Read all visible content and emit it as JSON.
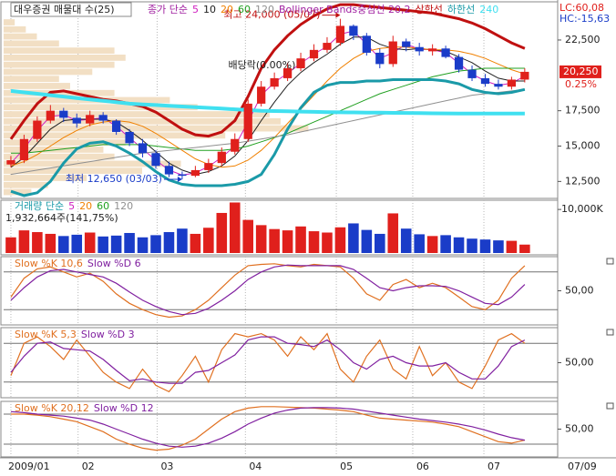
{
  "x_axis": {
    "xlim": [
      -0.55,
      41.5
    ],
    "xticks": [
      {
        "value": 0,
        "label": "2009/01"
      },
      {
        "value": 5.1,
        "label": "02"
      },
      {
        "value": 11.1,
        "label": "03"
      },
      {
        "value": 17.8,
        "label": "04"
      },
      {
        "value": 24.7,
        "label": "05"
      },
      {
        "value": 30.5,
        "label": "06"
      },
      {
        "value": 35.9,
        "label": "07"
      }
    ],
    "end_label": "07/09"
  },
  "corner": {
    "lc": "LC:60,08",
    "hc": "HC:-15,63"
  },
  "chart_data": [
    {
      "type": "candlestick",
      "title": "대우증권 매물대 수(25)",
      "legend_prefix": "종가 단순",
      "bands_label": "Bollinger Bands중심선 20,2",
      "ylim": [
        11300,
        25200
      ],
      "yticks": [
        {
          "value": 12500,
          "label": "12,500"
        },
        {
          "value": 15000,
          "label": "15,000"
        },
        {
          "value": 17500,
          "label": "17,500"
        },
        {
          "value": 22500,
          "label": "22,500"
        }
      ],
      "up_color": "#e0201c",
      "down_color": "#1a3cc8",
      "open": [
        13700,
        14000,
        15500,
        16800,
        17500,
        17000,
        16600,
        17200,
        16800,
        16000,
        15200,
        14500,
        13600,
        13000,
        12900,
        13300,
        13800,
        14600,
        15500,
        18000,
        19200,
        19800,
        20500,
        21200,
        21800,
        22300,
        23500,
        22800,
        21600,
        20800,
        22400,
        22000,
        21700,
        21900,
        21300,
        20400,
        19800,
        19400,
        19200,
        19700
      ],
      "high": [
        14300,
        15800,
        17100,
        17900,
        17700,
        17300,
        17500,
        17400,
        16900,
        16200,
        15500,
        14700,
        13900,
        13200,
        13600,
        14100,
        14900,
        15900,
        18300,
        19600,
        20200,
        20900,
        21600,
        22200,
        22700,
        24000,
        23600,
        23000,
        21900,
        22800,
        22600,
        22300,
        22200,
        22100,
        21500,
        20700,
        20100,
        19700,
        19900,
        20500
      ],
      "low": [
        13500,
        13800,
        15300,
        16600,
        16700,
        16300,
        16400,
        16600,
        15800,
        15000,
        14200,
        13400,
        12800,
        12650,
        12800,
        13100,
        13600,
        14400,
        15300,
        17800,
        19000,
        19600,
        20300,
        21000,
        21600,
        22100,
        22500,
        21400,
        20500,
        20600,
        21700,
        21400,
        21400,
        21200,
        20200,
        19600,
        19200,
        19000,
        19000,
        19500
      ],
      "close": [
        14000,
        15500,
        16800,
        17500,
        17000,
        16600,
        17200,
        16800,
        16000,
        15200,
        14500,
        13600,
        13000,
        12900,
        13300,
        13800,
        14600,
        15500,
        18000,
        19200,
        19800,
        20500,
        21200,
        21800,
        22300,
        23500,
        22800,
        21600,
        20800,
        22400,
        22000,
        21700,
        21900,
        21300,
        20400,
        19800,
        19400,
        19200,
        19700,
        20250
      ],
      "series": [
        {
          "name": "5",
          "color": "#d020c0",
          "width": 1,
          "values": [
            13800,
            14800,
            16100,
            17100,
            17200,
            16800,
            16900,
            17000,
            16400,
            15600,
            14800,
            14000,
            13300,
            12950,
            13100,
            13550,
            14200,
            15000,
            16700,
            18600,
            19500,
            20150,
            20850,
            21500,
            22050,
            22900,
            23150,
            22200,
            21200,
            21600,
            22200,
            21850,
            21800,
            21600,
            20850,
            20100,
            19600,
            19300,
            19450,
            19950
          ]
        },
        {
          "name": "10",
          "color": "#202020",
          "width": 1,
          "values": [
            13500,
            14200,
            15200,
            16200,
            16800,
            16900,
            16900,
            16900,
            16700,
            16100,
            15400,
            14600,
            13800,
            13300,
            13000,
            13200,
            13600,
            14300,
            15400,
            16800,
            18100,
            19300,
            20200,
            20900,
            21500,
            22200,
            22700,
            22700,
            22200,
            21900,
            21800,
            21900,
            21800,
            21700,
            21300,
            20900,
            20300,
            19800,
            19600,
            19600
          ]
        },
        {
          "name": "20",
          "color": "#f08000",
          "width": 1,
          "values": [
            13600,
            13900,
            14400,
            15000,
            15600,
            16100,
            16500,
            16700,
            16800,
            16700,
            16400,
            15900,
            15300,
            14700,
            14100,
            13700,
            13500,
            13600,
            14000,
            14700,
            15600,
            16600,
            17600,
            18600,
            19600,
            20500,
            21200,
            21700,
            21900,
            22000,
            22000,
            21900,
            21800,
            21800,
            21700,
            21500,
            21200,
            20800,
            20400,
            20100
          ]
        },
        {
          "name": "60",
          "color": "#20a020",
          "width": 1,
          "values": [
            14500,
            14500,
            14600,
            14700,
            14800,
            14900,
            15000,
            15100,
            15100,
            15100,
            15100,
            15000,
            14900,
            14800,
            14700,
            14700,
            14700,
            14800,
            15000,
            15300,
            15600,
            15900,
            16300,
            16700,
            17100,
            17500,
            17900,
            18300,
            18700,
            19000,
            19300,
            19600,
            19900,
            20100,
            20300,
            20400,
            20500,
            20500,
            20500,
            20500
          ]
        },
        {
          "name": "120",
          "color": "#909090",
          "width": 1,
          "values": [
            13000,
            13150,
            13300,
            13450,
            13600,
            13750,
            13900,
            14050,
            14200,
            14350,
            14500,
            14600,
            14700,
            14800,
            14900,
            15000,
            15100,
            15200,
            15350,
            15500,
            15650,
            15800,
            16000,
            16200,
            16400,
            16600,
            16800,
            17000,
            17200,
            17400,
            17600,
            17800,
            18000,
            18200,
            18400,
            18600,
            18700,
            18800,
            18900,
            19000
          ]
        },
        {
          "name": "상한선",
          "color": "#c01010",
          "width": 3,
          "values": [
            15500,
            16800,
            18000,
            18800,
            18900,
            18700,
            18500,
            18300,
            18200,
            18000,
            17800,
            17400,
            16800,
            16200,
            15800,
            15700,
            16000,
            16800,
            18500,
            20500,
            21800,
            22800,
            23600,
            24200,
            24700,
            25000,
            25000,
            24900,
            24800,
            24700,
            24600,
            24500,
            24400,
            24200,
            24000,
            23700,
            23300,
            22800,
            22300,
            21900
          ]
        },
        {
          "name": "하한선",
          "color": "#1a9aa8",
          "width": 3,
          "values": [
            11800,
            11500,
            11700,
            12500,
            13800,
            14800,
            15200,
            15300,
            15000,
            14500,
            13900,
            13200,
            12600,
            12300,
            12200,
            12200,
            12200,
            12300,
            12500,
            13000,
            14400,
            16200,
            17700,
            18800,
            19300,
            19500,
            19500,
            19600,
            19600,
            19700,
            19700,
            19700,
            19700,
            19600,
            19400,
            19000,
            18800,
            18700,
            18800,
            19000
          ]
        },
        {
          "name": "240",
          "color": "#40e0f0",
          "width": 4,
          "values": [
            18900,
            18800,
            18700,
            18600,
            18500,
            18400,
            18300,
            18200,
            18100,
            18000,
            17950,
            17900,
            17850,
            17800,
            17750,
            17700,
            17650,
            17600,
            17550,
            17500,
            17480,
            17460,
            17440,
            17420,
            17400,
            17390,
            17380,
            17370,
            17360,
            17350,
            17340,
            17330,
            17320,
            17310,
            17300,
            17300,
            17300,
            17300,
            17300,
            17300
          ]
        }
      ],
      "profile": {
        "color": "#f2dfc4",
        "bins": [
          11500,
          12000,
          12500,
          13000,
          13500,
          14000,
          14500,
          15000,
          15500,
          16000,
          16500,
          17000,
          17500,
          18000,
          18500,
          19000,
          19500,
          20000,
          20500,
          21000,
          21500,
          22000,
          22500,
          23000,
          23500,
          24000
        ],
        "values": [
          5,
          8,
          15,
          25,
          32,
          20,
          18,
          22,
          40,
          55,
          50,
          48,
          35,
          30,
          20,
          12,
          10,
          16,
          20,
          22,
          20,
          10,
          6,
          4,
          2
        ]
      },
      "annotations": [
        {
          "text": "최고 24,000 (05/07)",
          "x": 25,
          "y": 24000,
          "color": "#c01010"
        },
        {
          "text": "최저 12,650 (03/03)",
          "x": 13,
          "y": 12650,
          "color": "#1a3cc8"
        },
        {
          "text": "배당락(0.00%)",
          "x": 16.5,
          "y": 20700,
          "color": "#202020"
        }
      ],
      "last_price": {
        "value": 20250,
        "label": "20,250"
      },
      "change": "0.25%"
    },
    {
      "type": "bar",
      "title": "거래량 단순",
      "subtitle": "1,932,664주(141,75%)",
      "legend": [
        {
          "text": "5",
          "color": "#d020c0"
        },
        {
          "text": "20",
          "color": "#f08000"
        },
        {
          "text": "60",
          "color": "#20a020"
        },
        {
          "text": "120",
          "color": "#909090"
        }
      ],
      "ylim": [
        0,
        11700
      ],
      "yticks": [
        {
          "value": 10000,
          "label": "10,000K"
        }
      ],
      "values": [
        3600,
        5200,
        4800,
        4400,
        3900,
        4200,
        4700,
        3800,
        4000,
        4600,
        3600,
        4100,
        4800,
        5600,
        4400,
        5800,
        9200,
        11600,
        7600,
        6400,
        5500,
        5200,
        6100,
        5000,
        4700,
        5900,
        6800,
        5300,
        4400,
        9100,
        5600,
        4300,
        3900,
        4100,
        3600,
        3300,
        3100,
        2900,
        2800,
        1933
      ]
    },
    {
      "type": "line",
      "ylim": [
        0,
        100
      ],
      "yticks": [
        {
          "value": 50,
          "label": "50,00"
        }
      ],
      "levels": [
        20,
        80
      ],
      "series": [
        {
          "name": "Slow %K 10,6",
          "color": "#e07020",
          "values": [
            40,
            70,
            85,
            88,
            80,
            72,
            78,
            65,
            45,
            30,
            20,
            12,
            8,
            10,
            20,
            35,
            55,
            75,
            90,
            92,
            93,
            90,
            88,
            92,
            90,
            88,
            70,
            45,
            35,
            60,
            68,
            55,
            62,
            55,
            40,
            25,
            20,
            35,
            70,
            90
          ]
        },
        {
          "name": "Slow %D 6",
          "color": "#8020a0",
          "values": [
            35,
            55,
            72,
            82,
            84,
            80,
            76,
            72,
            62,
            48,
            35,
            25,
            17,
            12,
            14,
            22,
            35,
            50,
            68,
            80,
            88,
            91,
            90,
            90,
            90,
            90,
            84,
            70,
            55,
            50,
            55,
            58,
            58,
            57,
            50,
            40,
            30,
            28,
            40,
            60
          ]
        }
      ]
    },
    {
      "type": "line",
      "ylim": [
        0,
        100
      ],
      "yticks": [
        {
          "value": 50,
          "label": "50,00"
        }
      ],
      "levels": [
        20,
        80
      ],
      "series": [
        {
          "name": "Slow %K 5,3",
          "color": "#e07020",
          "values": [
            30,
            80,
            90,
            75,
            55,
            85,
            60,
            35,
            20,
            10,
            40,
            15,
            5,
            30,
            60,
            20,
            70,
            95,
            90,
            95,
            85,
            60,
            90,
            70,
            95,
            40,
            20,
            60,
            85,
            40,
            25,
            75,
            30,
            50,
            20,
            10,
            45,
            85,
            95,
            80
          ]
        },
        {
          "name": "Slow %D 3",
          "color": "#8020a0",
          "values": [
            35,
            60,
            80,
            82,
            72,
            70,
            68,
            55,
            38,
            22,
            25,
            20,
            18,
            18,
            35,
            38,
            50,
            62,
            85,
            90,
            90,
            80,
            78,
            75,
            85,
            70,
            50,
            40,
            55,
            60,
            50,
            45,
            45,
            50,
            35,
            25,
            25,
            45,
            75,
            85
          ]
        }
      ]
    },
    {
      "type": "line",
      "ylim": [
        0,
        100
      ],
      "yticks": [
        {
          "value": 50,
          "label": "50,00"
        }
      ],
      "levels": [
        20,
        80
      ],
      "series": [
        {
          "name": "Slow %K 20,12",
          "color": "#e07020",
          "values": [
            80,
            80,
            78,
            75,
            70,
            65,
            55,
            45,
            30,
            20,
            12,
            8,
            10,
            18,
            30,
            50,
            70,
            85,
            92,
            95,
            95,
            94,
            93,
            92,
            90,
            88,
            85,
            78,
            72,
            70,
            68,
            66,
            64,
            60,
            55,
            45,
            35,
            25,
            22,
            28
          ]
        },
        {
          "name": "Slow %D 12",
          "color": "#8020a0",
          "values": [
            85,
            83,
            80,
            78,
            76,
            72,
            68,
            60,
            50,
            40,
            30,
            22,
            16,
            14,
            16,
            22,
            32,
            45,
            60,
            72,
            82,
            88,
            92,
            93,
            93,
            92,
            90,
            86,
            82,
            78,
            74,
            70,
            67,
            64,
            60,
            55,
            48,
            40,
            33,
            28
          ]
        }
      ]
    }
  ]
}
